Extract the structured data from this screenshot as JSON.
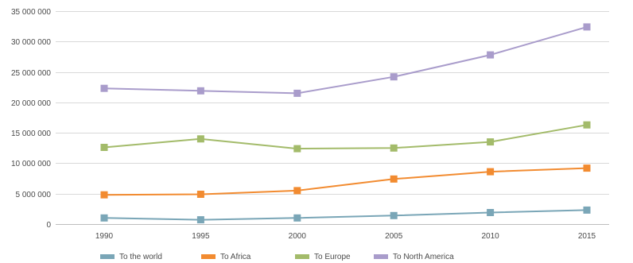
{
  "chart_data": {
    "type": "line",
    "title": "",
    "xlabel": "",
    "ylabel": "",
    "x": [
      "1990",
      "1995",
      "2000",
      "2005",
      "2010",
      "2015"
    ],
    "ylim": [
      0,
      35000000
    ],
    "y_ticks": [
      0,
      5000000,
      10000000,
      15000000,
      20000000,
      25000000,
      30000000,
      35000000
    ],
    "y_tick_labels": [
      "0",
      "5 000 000",
      "10 000 000",
      "15 000 000",
      "20 000 000",
      "25 000 000",
      "30 000 000",
      "35 000 000"
    ],
    "grid": "horizontal",
    "legend_position": "bottom",
    "series": [
      {
        "name": "To the world",
        "color": "#7aa6b7",
        "values": [
          1000000,
          700000,
          1000000,
          1400000,
          1900000,
          2300000
        ]
      },
      {
        "name": "To Africa",
        "color": "#f28b30",
        "values": [
          4800000,
          4900000,
          5500000,
          7400000,
          8600000,
          9200000
        ]
      },
      {
        "name": "To Europe",
        "color": "#a3bb6a",
        "values": [
          12600000,
          14000000,
          12400000,
          12500000,
          13500000,
          16300000
        ]
      },
      {
        "name": "To North America",
        "color": "#a99ccb",
        "values": [
          22300000,
          21900000,
          21500000,
          24200000,
          27800000,
          32400000
        ]
      }
    ]
  }
}
